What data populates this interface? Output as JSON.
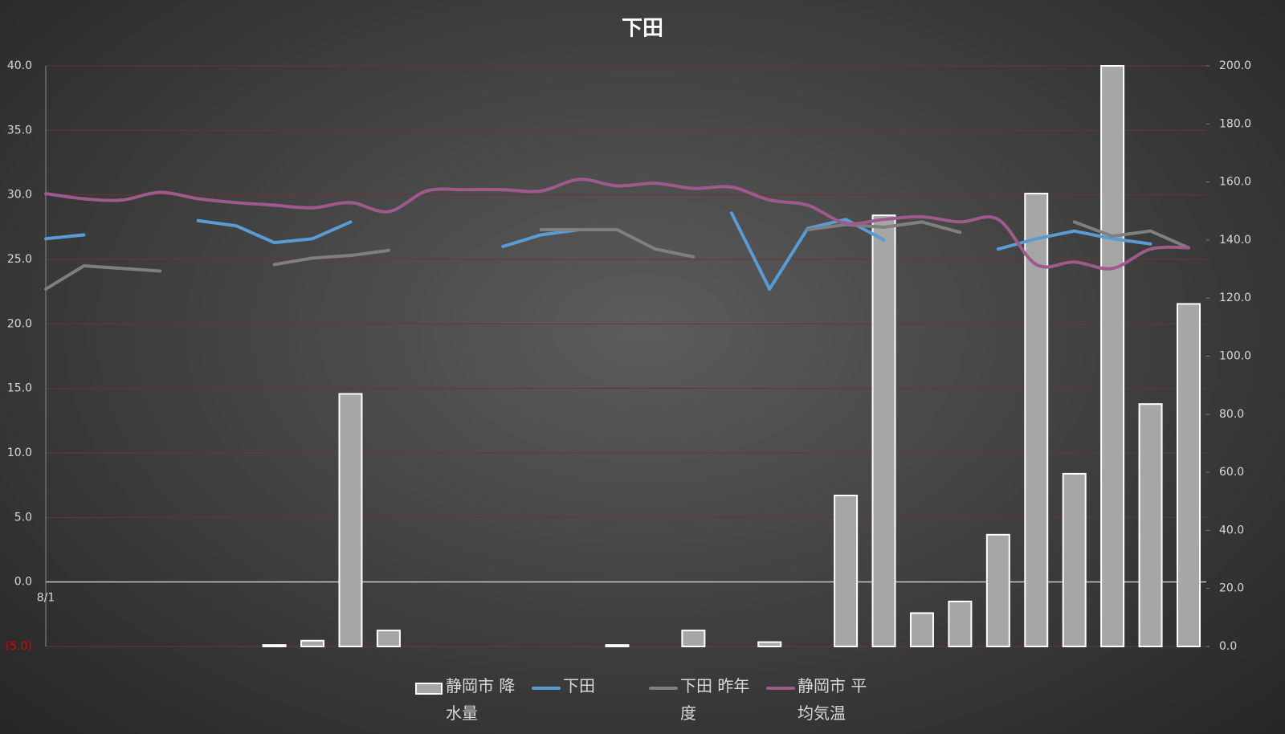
{
  "chart_data": {
    "type": "combo",
    "title": "下田",
    "categories": [
      "8/1",
      null,
      null,
      null,
      null,
      null,
      null,
      null,
      null,
      null,
      null,
      null,
      null,
      null,
      null,
      null,
      null,
      null,
      null,
      null,
      null,
      null,
      null,
      null,
      null,
      null,
      null,
      null,
      null,
      null,
      null
    ],
    "ylim": [
      -5,
      40
    ],
    "yticks": [
      {
        "value": -5,
        "label": "(5.0)"
      },
      {
        "value": 0,
        "label": "0.0"
      },
      {
        "value": 5,
        "label": "5.0"
      },
      {
        "value": 10,
        "label": "10.0"
      },
      {
        "value": 15,
        "label": "15.0"
      },
      {
        "value": 20,
        "label": "20.0"
      },
      {
        "value": 25,
        "label": "25.0"
      },
      {
        "value": 30,
        "label": "30.0"
      },
      {
        "value": 35,
        "label": "35.0"
      },
      {
        "value": 40,
        "label": "40.0"
      }
    ],
    "negative_label_color": "#e00000",
    "y2lim": [
      0,
      200
    ],
    "y2ticks": [
      {
        "value": 0,
        "label": "0.0"
      },
      {
        "value": 20,
        "label": "20.0"
      },
      {
        "value": 40,
        "label": "40.0"
      },
      {
        "value": 60,
        "label": "60.0"
      },
      {
        "value": 80,
        "label": "80.0"
      },
      {
        "value": 100,
        "label": "100.0"
      },
      {
        "value": 120,
        "label": "120.0"
      },
      {
        "value": 140,
        "label": "140.0"
      },
      {
        "value": 160,
        "label": "160.0"
      },
      {
        "value": 180,
        "label": "180.0"
      },
      {
        "value": 200,
        "label": "200.0"
      }
    ],
    "grid": true,
    "legend": "bottom",
    "series": [
      {
        "name": "静岡市 降水量",
        "type": "bar",
        "axis": "y2",
        "color": "#a6a6a6",
        "values": [
          null,
          null,
          null,
          null,
          null,
          null,
          0.5,
          2,
          87,
          5.5,
          null,
          null,
          null,
          null,
          null,
          0.5,
          null,
          5.5,
          null,
          1.5,
          null,
          52,
          148.5,
          11.5,
          15.5,
          38.5,
          156,
          59.5,
          200,
          83.5,
          118
        ]
      },
      {
        "name": "下田",
        "type": "line",
        "color": "#5b9bd5",
        "values": [
          26.6,
          26.9,
          null,
          null,
          28.0,
          27.6,
          26.3,
          26.6,
          27.9,
          null,
          null,
          null,
          26.0,
          26.9,
          27.3,
          27.3,
          null,
          null,
          28.6,
          22.7,
          27.4,
          28.1,
          26.5,
          null,
          null,
          25.8,
          26.6,
          27.2,
          26.6,
          26.2,
          null
        ]
      },
      {
        "name": "下田 昨年度",
        "type": "line",
        "color": "#7f7f7f",
        "values": [
          22.7,
          24.5,
          24.3,
          24.1,
          null,
          null,
          24.6,
          25.1,
          25.3,
          25.7,
          null,
          null,
          null,
          27.3,
          27.3,
          27.3,
          25.8,
          25.2,
          null,
          null,
          27.3,
          27.7,
          27.5,
          27.9,
          27.1,
          null,
          null,
          27.9,
          26.8,
          27.2,
          25.9
        ]
      },
      {
        "name": "静岡市 平均気温",
        "type": "line",
        "color": "#9e5a8c",
        "smooth": true,
        "values": [
          30.1,
          29.7,
          29.6,
          30.2,
          29.7,
          29.4,
          29.2,
          29.0,
          29.4,
          28.7,
          30.3,
          30.4,
          30.4,
          30.3,
          31.2,
          30.7,
          30.9,
          30.5,
          30.6,
          29.6,
          29.2,
          27.8,
          28.1,
          28.3,
          27.9,
          28.1,
          24.6,
          24.8,
          24.3,
          25.8,
          25.9
        ]
      }
    ]
  }
}
